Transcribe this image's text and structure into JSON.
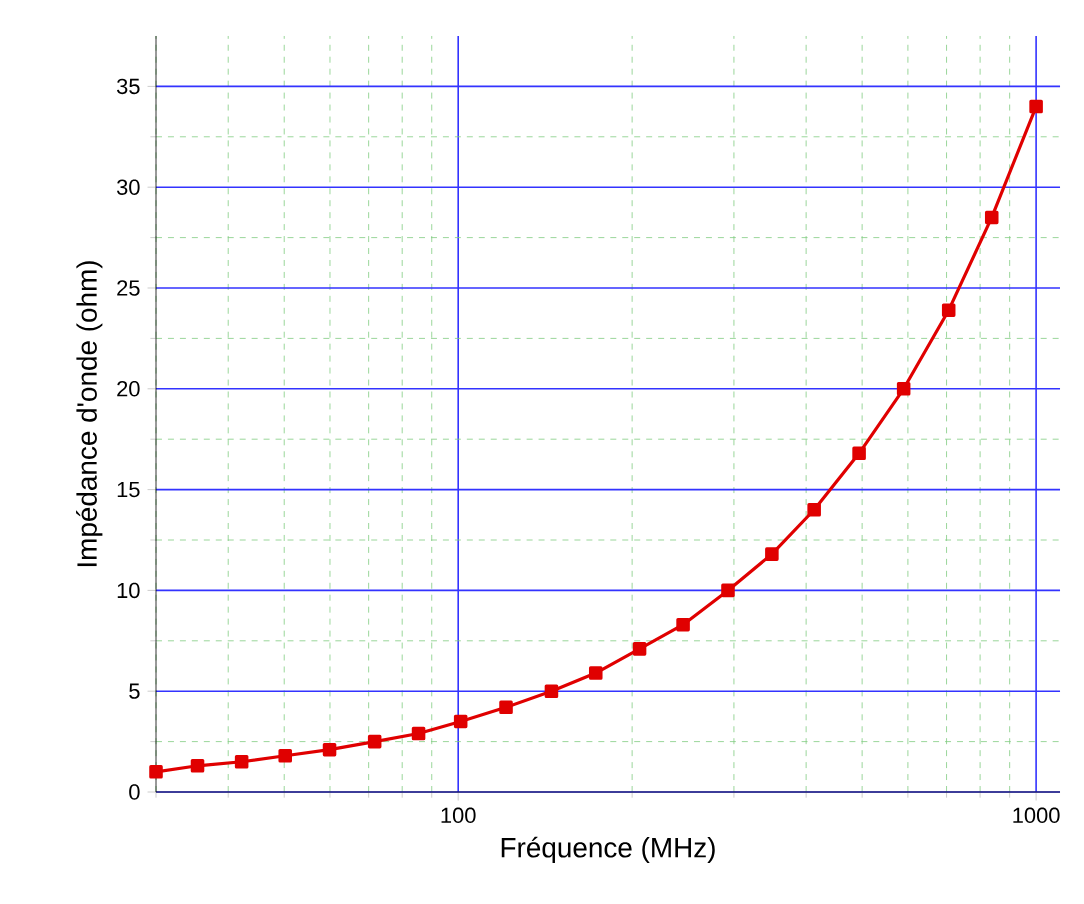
{
  "chart_data": {
    "type": "line",
    "xlabel": "Fréquence (MHz)",
    "ylabel": "Impédance d'onde (ohm)",
    "log": "x",
    "x": [
      30,
      35.4,
      42.2,
      50.2,
      59.9,
      71.7,
      85.4,
      101,
      121,
      145,
      173,
      206,
      245,
      293,
      349,
      413,
      494,
      590,
      706,
      838,
      1000
    ],
    "series": [
      {
        "color": "#e00000",
        "values": [
          1.0,
          1.3,
          1.5,
          1.8,
          2.1,
          2.5,
          2.9,
          3.5,
          4.2,
          5.0,
          5.9,
          7.1,
          8.3,
          10.0,
          11.8,
          14.0,
          16.8,
          20.0,
          23.9,
          28.5,
          34.0
        ]
      }
    ],
    "xlim": [
      30,
      1100
    ],
    "xticks": [
      {
        "value": 30,
        "label": null
      },
      {
        "value": 40,
        "label": null
      },
      {
        "value": 50,
        "label": null
      },
      {
        "value": 60,
        "label": null
      },
      {
        "value": 70,
        "label": null
      },
      {
        "value": 80,
        "label": null
      },
      {
        "value": 90,
        "label": null
      },
      100,
      {
        "value": 200,
        "label": null
      },
      {
        "value": 300,
        "label": null
      },
      {
        "value": 400,
        "label": null
      },
      {
        "value": 500,
        "label": null
      },
      {
        "value": 600,
        "label": null
      },
      {
        "value": 700,
        "label": null
      },
      {
        "value": 800,
        "label": null
      },
      {
        "value": 900,
        "label": null
      },
      1000
    ],
    "ylim": [
      0,
      37.5
    ],
    "yticks": [
      0,
      {
        "value": 2.5,
        "label": null
      },
      5,
      {
        "value": 7.5,
        "label": null
      },
      10,
      {
        "value": 12.5,
        "label": null
      },
      15,
      {
        "value": 17.5,
        "label": null
      },
      20,
      {
        "value": 22.5,
        "label": null
      },
      25,
      {
        "value": 27.5,
        "label": null
      },
      30,
      {
        "value": 32.5,
        "label": null
      },
      35
    ],
    "grid": true,
    "marker": "square",
    "line_style": "solid"
  }
}
